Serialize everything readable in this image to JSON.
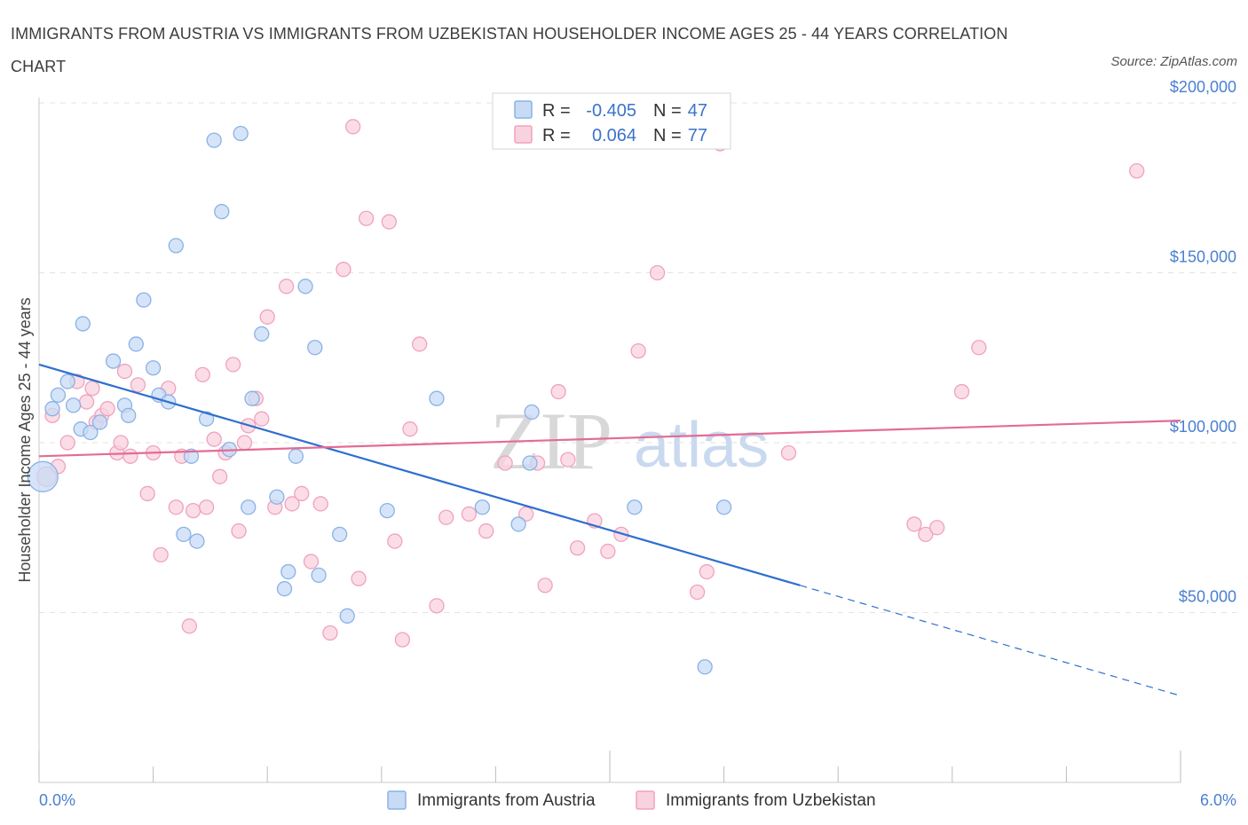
{
  "title": "IMMIGRANTS FROM AUSTRIA VS IMMIGRANTS FROM UZBEKISTAN HOUSEHOLDER INCOME AGES 25 - 44 YEARS CORRELATION CHART",
  "source": "Source: ZipAtlas.com",
  "watermark": {
    "zip": "ZIP",
    "atlas": "atlas"
  },
  "stats": {
    "austria": {
      "r_label": "R =",
      "r_value": "-0.405",
      "n_label": "N =",
      "n_value": "47"
    },
    "uzbekistan": {
      "r_label": "R =",
      "r_value": "0.064",
      "n_label": "N =",
      "n_value": "77"
    }
  },
  "legend": {
    "austria": "Immigrants from Austria",
    "uzbekistan": "Immigrants from Uzbekistan"
  },
  "colors": {
    "austria_fill": "#c7dbf5",
    "austria_stroke": "#8ab2e6",
    "austria_line": "#2f6fcf",
    "uzbekistan_fill": "#f9d2df",
    "uzbekistan_stroke": "#f0a2bc",
    "uzbekistan_line": "#e46b94",
    "tick_text": "#4a7fd1",
    "grid": "#e3e3e3"
  },
  "chart_data": {
    "type": "scatter",
    "xlabel": "",
    "ylabel": "Householder Income Ages 25 - 44 years",
    "xlim": [
      0,
      6
    ],
    "ylim": [
      0,
      200000
    ],
    "x_tick_labels": [
      "0.0%",
      "6.0%"
    ],
    "y_ticks": [
      {
        "value": 50000,
        "label": "$50,000"
      },
      {
        "value": 100000,
        "label": "$100,000"
      },
      {
        "value": 150000,
        "label": "$150,000"
      },
      {
        "value": 200000,
        "label": "$200,000"
      }
    ],
    "grid": "horizontal dashed",
    "legend_position": "bottom",
    "series": [
      {
        "name": "Immigrants from Austria",
        "points": [
          [
            0.02,
            90000
          ],
          [
            0.07,
            110000
          ],
          [
            0.1,
            114000
          ],
          [
            0.15,
            118000
          ],
          [
            0.18,
            111000
          ],
          [
            0.22,
            104000
          ],
          [
            0.27,
            103000
          ],
          [
            0.32,
            106000
          ],
          [
            0.23,
            135000
          ],
          [
            0.39,
            124000
          ],
          [
            0.45,
            111000
          ],
          [
            0.47,
            108000
          ],
          [
            0.51,
            129000
          ],
          [
            0.55,
            142000
          ],
          [
            0.6,
            122000
          ],
          [
            0.63,
            114000
          ],
          [
            0.68,
            112000
          ],
          [
            0.72,
            158000
          ],
          [
            0.76,
            73000
          ],
          [
            0.8,
            96000
          ],
          [
            0.83,
            71000
          ],
          [
            0.88,
            107000
          ],
          [
            0.92,
            189000
          ],
          [
            0.96,
            168000
          ],
          [
            1.0,
            98000
          ],
          [
            1.06,
            191000
          ],
          [
            1.1,
            81000
          ],
          [
            1.12,
            113000
          ],
          [
            1.17,
            132000
          ],
          [
            1.25,
            84000
          ],
          [
            1.29,
            57000
          ],
          [
            1.31,
            62000
          ],
          [
            1.35,
            96000
          ],
          [
            1.4,
            146000
          ],
          [
            1.45,
            128000
          ],
          [
            1.47,
            61000
          ],
          [
            1.58,
            73000
          ],
          [
            1.62,
            49000
          ],
          [
            1.83,
            80000
          ],
          [
            2.09,
            113000
          ],
          [
            2.33,
            81000
          ],
          [
            2.52,
            76000
          ],
          [
            2.58,
            94000
          ],
          [
            2.59,
            109000
          ],
          [
            3.13,
            81000
          ],
          [
            3.5,
            34000
          ],
          [
            3.6,
            81000
          ]
        ]
      },
      {
        "name": "Immigrants from Uzbekistan",
        "points": [
          [
            0.04,
            90000
          ],
          [
            0.07,
            108000
          ],
          [
            0.1,
            93000
          ],
          [
            0.15,
            100000
          ],
          [
            0.2,
            118000
          ],
          [
            0.25,
            112000
          ],
          [
            0.28,
            116000
          ],
          [
            0.3,
            106000
          ],
          [
            0.33,
            108000
          ],
          [
            0.36,
            110000
          ],
          [
            0.41,
            97000
          ],
          [
            0.43,
            100000
          ],
          [
            0.45,
            121000
          ],
          [
            0.48,
            96000
          ],
          [
            0.52,
            117000
          ],
          [
            0.57,
            85000
          ],
          [
            0.6,
            97000
          ],
          [
            0.64,
            67000
          ],
          [
            0.68,
            116000
          ],
          [
            0.72,
            81000
          ],
          [
            0.75,
            96000
          ],
          [
            0.79,
            46000
          ],
          [
            0.81,
            80000
          ],
          [
            0.86,
            120000
          ],
          [
            0.88,
            81000
          ],
          [
            0.92,
            101000
          ],
          [
            0.95,
            90000
          ],
          [
            0.98,
            97000
          ],
          [
            1.02,
            123000
          ],
          [
            1.05,
            74000
          ],
          [
            1.08,
            100000
          ],
          [
            1.1,
            105000
          ],
          [
            1.14,
            113000
          ],
          [
            1.17,
            107000
          ],
          [
            1.2,
            137000
          ],
          [
            1.24,
            81000
          ],
          [
            1.3,
            146000
          ],
          [
            1.33,
            82000
          ],
          [
            1.38,
            85000
          ],
          [
            1.43,
            65000
          ],
          [
            1.48,
            82000
          ],
          [
            1.53,
            44000
          ],
          [
            1.6,
            151000
          ],
          [
            1.65,
            193000
          ],
          [
            1.68,
            60000
          ],
          [
            1.72,
            166000
          ],
          [
            1.84,
            165000
          ],
          [
            1.87,
            71000
          ],
          [
            1.91,
            42000
          ],
          [
            1.95,
            104000
          ],
          [
            2.0,
            129000
          ],
          [
            2.09,
            52000
          ],
          [
            2.14,
            78000
          ],
          [
            2.26,
            79000
          ],
          [
            2.35,
            74000
          ],
          [
            2.45,
            94000
          ],
          [
            2.56,
            79000
          ],
          [
            2.62,
            94000
          ],
          [
            2.66,
            58000
          ],
          [
            2.73,
            115000
          ],
          [
            2.78,
            95000
          ],
          [
            2.83,
            69000
          ],
          [
            2.92,
            77000
          ],
          [
            2.99,
            68000
          ],
          [
            3.06,
            73000
          ],
          [
            3.15,
            127000
          ],
          [
            3.25,
            150000
          ],
          [
            3.46,
            56000
          ],
          [
            3.51,
            62000
          ],
          [
            3.58,
            188000
          ],
          [
            3.94,
            97000
          ],
          [
            4.6,
            76000
          ],
          [
            4.66,
            73000
          ],
          [
            4.72,
            75000
          ],
          [
            4.85,
            115000
          ],
          [
            4.94,
            128000
          ],
          [
            5.77,
            180000
          ]
        ]
      }
    ],
    "trend_lines": [
      {
        "name": "Immigrants from Austria",
        "start": [
          0,
          123000
        ],
        "solid_end": [
          4.0,
          58000
        ],
        "dashed_end": [
          6.0,
          25500
        ]
      },
      {
        "name": "Immigrants from Uzbekistan",
        "start": [
          0,
          96000
        ],
        "end": [
          6.0,
          106500
        ]
      }
    ]
  }
}
